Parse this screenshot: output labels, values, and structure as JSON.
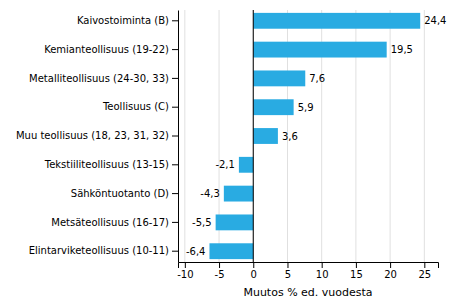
{
  "chart_data": {
    "type": "bar",
    "orientation": "horizontal",
    "categories": [
      "Elintarviketeollisuus (10-11)",
      "Metsäteollisuus (16-17)",
      "Sähköntuotanto (D)",
      "Tekstiiliteollisuus (13-15)",
      "Muu teollisuus (18, 23, 31, 32)",
      "Teollisuus (C)",
      "Metalliteollisuus (24-30, 33)",
      "Kemianteollisuus (19-22)",
      "Kaivostoiminta (B)"
    ],
    "values": [
      -6.4,
      -5.5,
      -4.3,
      -2.1,
      3.6,
      5.9,
      7.6,
      19.5,
      24.4
    ],
    "value_labels": [
      "-6,4",
      "-5,5",
      "-4,3",
      "-2,1",
      "3,6",
      "5,9",
      "7,6",
      "19,5",
      "24,4"
    ],
    "data_labels": true,
    "color": "#29abe2",
    "xlabel": "Muutos % ed. vuodesta",
    "xlim": [
      -11,
      27
    ],
    "xticks": [
      -10,
      -5,
      0,
      5,
      10,
      15,
      20,
      25
    ],
    "grid": true
  }
}
